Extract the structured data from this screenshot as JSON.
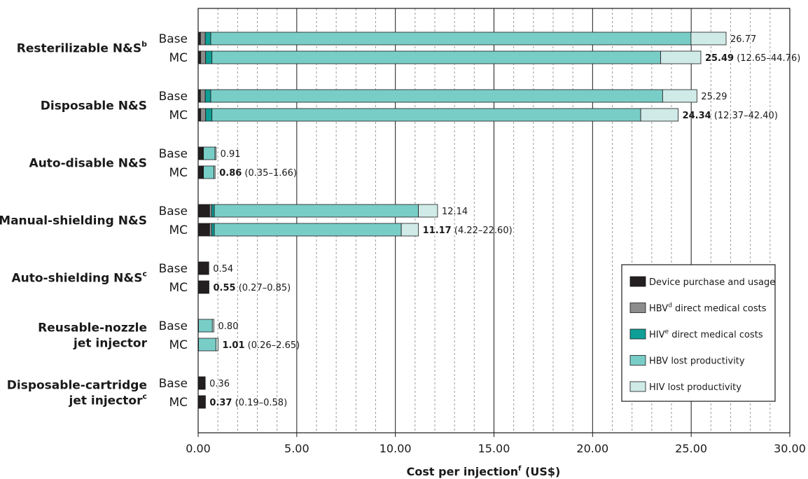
{
  "chart_data": {
    "type": "bar",
    "orientation": "horizontal",
    "stacked": true,
    "xlabel": "Cost per injection",
    "xlabel_superscript": "f",
    "xlabel_unit": "(US$)",
    "xlim": [
      0,
      30
    ],
    "xticks": [
      "0.00",
      "5.00",
      "10.00",
      "15.00",
      "20.00",
      "25.00",
      "30.00"
    ],
    "grid": "vertical dashed every 1.00, solid every 5.00",
    "legend_position": "bottom-right",
    "colors": {
      "Device purchase and usage": "#231f20",
      "HBV direct medical costs": "#8c8c8c",
      "HIV direct medical costs": "#0f9f96",
      "HBV lost productivity": "#79cdc7",
      "HIV lost productivity": "#cfeae7"
    },
    "series_names": [
      {
        "name": "Device purchase and usage",
        "pre": "Device purchase and usage",
        "sup": "",
        "post": ""
      },
      {
        "name": "HBV direct medical costs",
        "pre": "HBV",
        "sup": "d",
        "post": " direct medical costs"
      },
      {
        "name": "HIV direct medical costs",
        "pre": "HIV",
        "sup": "e",
        "post": " direct medical costs"
      },
      {
        "name": "HBV lost productivity",
        "pre": "HBV lost productivity",
        "sup": "",
        "post": ""
      },
      {
        "name": "HIV lost productivity",
        "pre": "HIV lost productivity",
        "sup": "",
        "post": ""
      }
    ],
    "groups": [
      {
        "label_lines": [
          "Resterilizable N&S"
        ],
        "superscript": "b",
        "rows": [
          {
            "row": "Base",
            "segments": [
              0.12,
              0.24,
              0.28,
              24.35,
              1.78
            ],
            "total": "26.77",
            "range": ""
          },
          {
            "row": "MC",
            "segments": [
              0.13,
              0.25,
              0.32,
              22.75,
              2.04
            ],
            "total": "25.49",
            "range": "(12.65–44.76)"
          }
        ]
      },
      {
        "label_lines": [
          "Disposable N&S"
        ],
        "superscript": "",
        "rows": [
          {
            "row": "Base",
            "segments": [
              0.12,
              0.24,
              0.28,
              22.91,
              1.74
            ],
            "total": "25.29",
            "range": ""
          },
          {
            "row": "MC",
            "segments": [
              0.13,
              0.25,
              0.32,
              21.74,
              1.9
            ],
            "total": "24.34",
            "range": "(12.37–42.40)"
          }
        ]
      },
      {
        "label_lines": [
          "Auto-disable N&S"
        ],
        "superscript": "",
        "rows": [
          {
            "row": "Base",
            "segments": [
              0.24,
              0.01,
              0.02,
              0.58,
              0.06
            ],
            "total": "0.91",
            "range": ""
          },
          {
            "row": "MC",
            "segments": [
              0.24,
              0.01,
              0.02,
              0.53,
              0.06
            ],
            "total": "0.86",
            "range": "(0.35–1.66)"
          }
        ]
      },
      {
        "label_lines": [
          "Manual-shielding N&S"
        ],
        "superscript": "",
        "rows": [
          {
            "row": "Base",
            "segments": [
              0.58,
              0.11,
              0.13,
              10.35,
              0.97
            ],
            "total": "12.14",
            "range": ""
          },
          {
            "row": "MC",
            "segments": [
              0.58,
              0.11,
              0.13,
              9.48,
              0.87
            ],
            "total": "11.17",
            "range": "(4.22–22.60)"
          }
        ]
      },
      {
        "label_lines": [
          "Auto-shielding N&S"
        ],
        "superscript": "c",
        "rows": [
          {
            "row": "Base",
            "segments": [
              0.54,
              0,
              0,
              0,
              0
            ],
            "total": "0.54",
            "range": ""
          },
          {
            "row": "MC",
            "segments": [
              0.55,
              0,
              0,
              0,
              0
            ],
            "total": "0.55",
            "range": "(0.27–0.85)"
          }
        ]
      },
      {
        "label_lines": [
          "Reusable-nozzle",
          "jet injector"
        ],
        "superscript": "",
        "rows": [
          {
            "row": "Base",
            "segments": [
              0.02,
              0,
              0,
              0.7,
              0.08
            ],
            "total": "0.80",
            "range": ""
          },
          {
            "row": "MC",
            "segments": [
              0.02,
              0,
              0,
              0.88,
              0.11
            ],
            "total": "1.01",
            "range": "(0.26–2.65)"
          }
        ]
      },
      {
        "label_lines": [
          "Disposable-cartridge",
          "jet injector"
        ],
        "superscript": "c",
        "rows": [
          {
            "row": "Base",
            "segments": [
              0.36,
              0,
              0,
              0,
              0
            ],
            "total": "0.36",
            "range": ""
          },
          {
            "row": "MC",
            "segments": [
              0.37,
              0,
              0,
              0,
              0
            ],
            "total": "0.37",
            "range": "(0.19–0.58)"
          }
        ]
      }
    ]
  }
}
